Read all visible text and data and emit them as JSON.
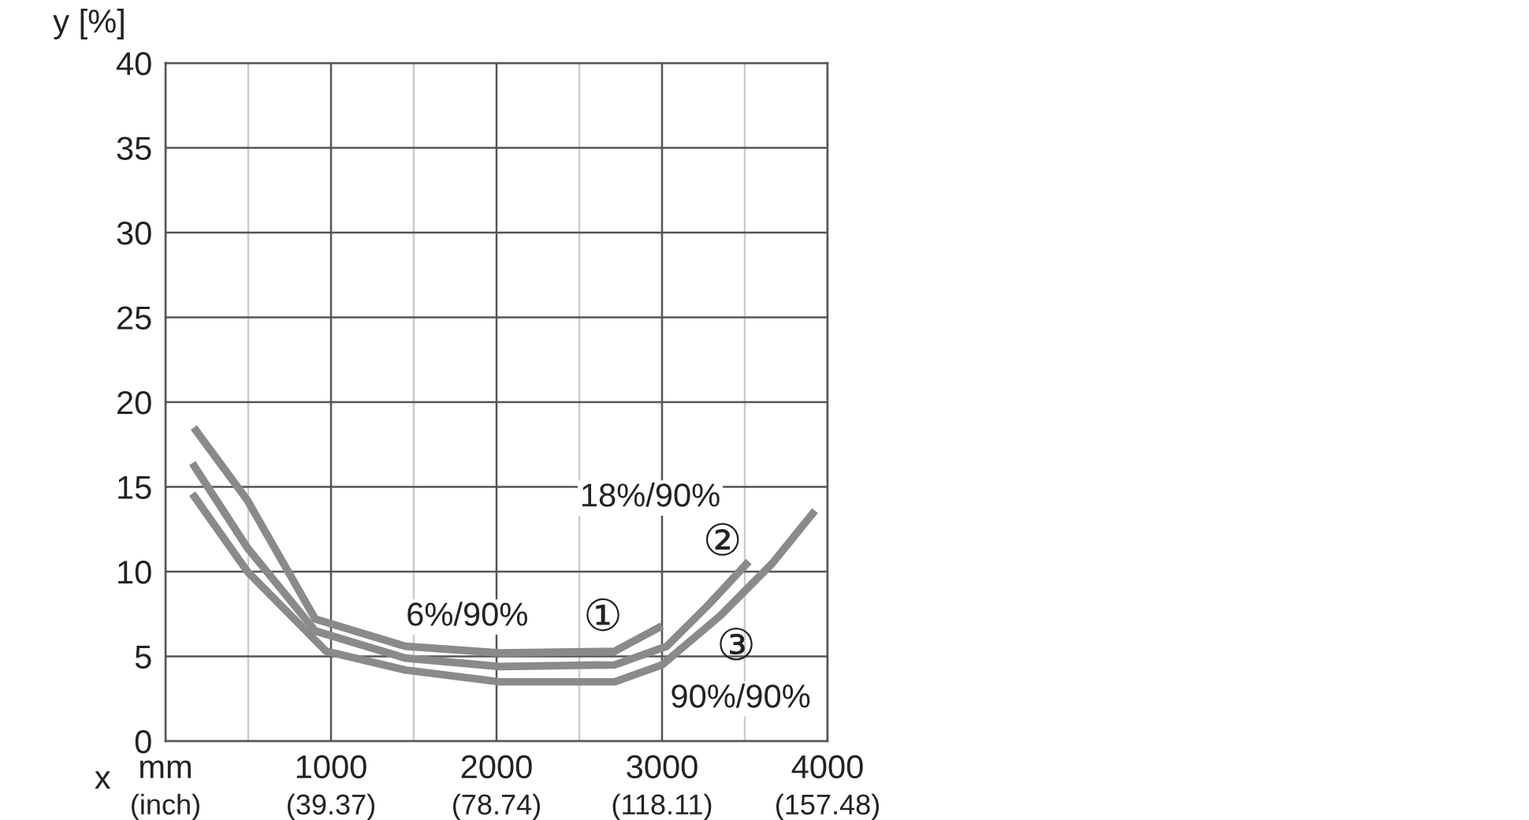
{
  "chart_data": {
    "type": "line",
    "xlabel": "x",
    "ylabel": "y [%]",
    "xlim": [
      0,
      4000
    ],
    "ylim": [
      0,
      40
    ],
    "xticks": [
      {
        "value": 0,
        "label": "mm"
      },
      {
        "value": 500,
        "label": null
      },
      1000,
      {
        "value": 1500,
        "label": null
      },
      2000,
      {
        "value": 2500,
        "label": null
      },
      3000,
      {
        "value": 3500,
        "label": null
      },
      4000
    ],
    "x2lim": [
      0,
      157.48
    ],
    "x2ticks": [
      {
        "value": 0,
        "label": "(inch)"
      },
      {
        "value": 39.37,
        "label": "(39.37)"
      },
      {
        "value": 78.74,
        "label": "(78.74)"
      },
      {
        "value": 118.11,
        "label": "(118.11)"
      },
      {
        "value": 157.48,
        "label": "(157.48)"
      }
    ],
    "yticks": [
      0,
      5,
      10,
      15,
      20,
      25,
      30,
      35,
      40
    ],
    "grid": true,
    "line_style": "solid",
    "marker": "none",
    "series": [
      {
        "color": "#8a8a8a",
        "x": [
          171,
          495,
          905,
          1448,
          2019,
          2714,
          3000
        ],
        "values": [
          18.5,
          14.2,
          7.2,
          5.6,
          5.2,
          5.3,
          6.8
        ]
      },
      {
        "color": "#8a8a8a",
        "x": [
          162,
          495,
          905,
          1448,
          2019,
          2714,
          3029,
          3286,
          3524
        ],
        "values": [
          16.4,
          11.4,
          6.5,
          4.9,
          4.4,
          4.5,
          5.6,
          8.1,
          10.6
        ]
      },
      {
        "color": "#8a8a8a",
        "x": [
          162,
          495,
          971,
          1448,
          2019,
          2714,
          3000,
          3352,
          3667,
          3924
        ],
        "values": [
          14.6,
          10.0,
          5.3,
          4.2,
          3.5,
          3.5,
          4.5,
          7.4,
          10.5,
          13.6
        ]
      }
    ],
    "annotations": [
      "①",
      "6%/90%",
      "②",
      "18%/90%",
      "③",
      "90%/90%"
    ]
  }
}
